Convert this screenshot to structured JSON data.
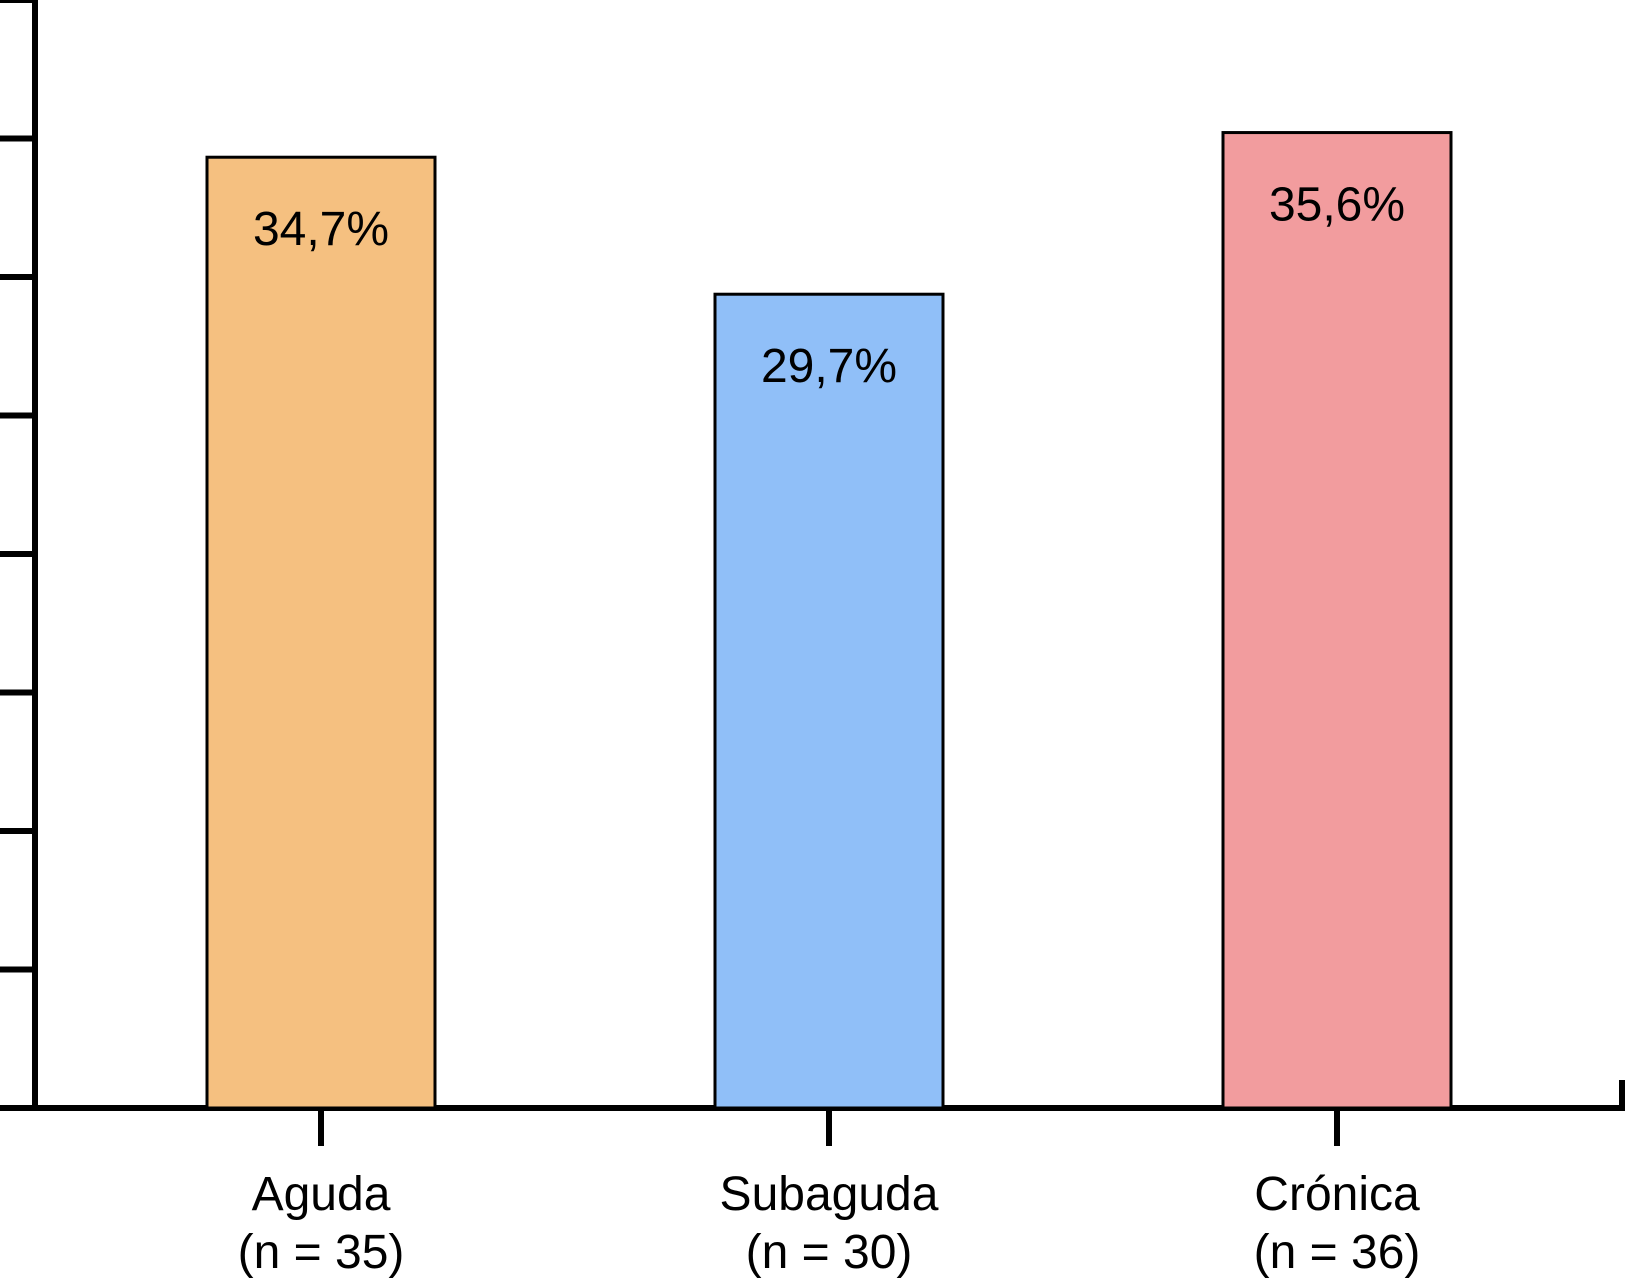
{
  "chart_data": {
    "type": "bar",
    "title": "",
    "xlabel": "",
    "ylabel": "",
    "ylim": [
      0,
      40
    ],
    "categories": [
      {
        "name": "Aguda",
        "n_label": "(n = 35)"
      },
      {
        "name": "Subaguda",
        "n_label": "(n = 30)"
      },
      {
        "name": "Crónica",
        "n_label": "(n = 36)"
      }
    ],
    "values": [
      34.7,
      29.7,
      35.6
    ],
    "value_labels": [
      "34,7%",
      "29,7%",
      "35,6%"
    ],
    "colors": [
      "#F5C080",
      "#90BFF8",
      "#F29C9E"
    ],
    "y_tick_count": 8,
    "grid": false
  }
}
